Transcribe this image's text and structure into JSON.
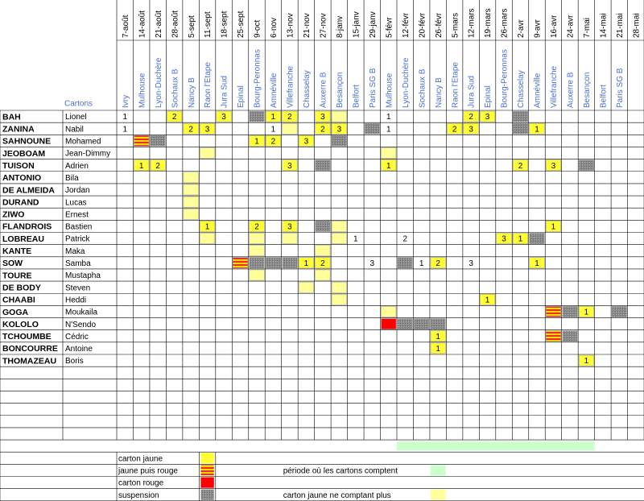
{
  "header": {
    "cartons": "Cartons"
  },
  "columns": [
    {
      "date": "7-août",
      "venue": "Ivry"
    },
    {
      "date": "14-août",
      "venue": "Mulhouse"
    },
    {
      "date": "21-août",
      "venue": "Lyon-Duchère"
    },
    {
      "date": "28-août",
      "venue": "Sochaux B"
    },
    {
      "date": "5-sept",
      "venue": "Nancy B"
    },
    {
      "date": "11-sept",
      "venue": "Raon l'Etape"
    },
    {
      "date": "18-sept",
      "venue": "Jura Sud"
    },
    {
      "date": "25-sept",
      "venue": "Epinal"
    },
    {
      "date": "9-oct",
      "venue": "Bourg-Peronnas"
    },
    {
      "date": "6-nov",
      "venue": "Amnéville"
    },
    {
      "date": "13-nov",
      "venue": "Villefranche"
    },
    {
      "date": "21-nov",
      "venue": "Chasselay"
    },
    {
      "date": "27-nov",
      "venue": "Auxerre B"
    },
    {
      "date": "8-janv",
      "venue": "Besançon"
    },
    {
      "date": "15-janv",
      "venue": "Belfort"
    },
    {
      "date": "29-janv",
      "venue": "Paris SG B"
    },
    {
      "date": "5-févr",
      "venue": "Mulhouse"
    },
    {
      "date": "12-févr",
      "venue": "Lyon-Duchère"
    },
    {
      "date": "20-févr",
      "venue": "Sochaux B"
    },
    {
      "date": "26-févr",
      "venue": "Nancy B"
    },
    {
      "date": "5-mars",
      "venue": "Raon l'Etape"
    },
    {
      "date": "12-mars",
      "venue": "Jura Sud"
    },
    {
      "date": "19-mars",
      "venue": "Epinal"
    },
    {
      "date": "26-mars",
      "venue": "Bourg-Peronnas"
    },
    {
      "date": "2-avr",
      "venue": "Chasselay"
    },
    {
      "date": "9-avr",
      "venue": "Amnéville"
    },
    {
      "date": "16-avr",
      "venue": "Villefranche"
    },
    {
      "date": "24-avr",
      "venue": "Auxerre B"
    },
    {
      "date": "7-mai",
      "venue": "Besançon"
    },
    {
      "date": "14-mai",
      "venue": "Belfort"
    },
    {
      "date": "21-mai",
      "venue": "Paris SG B"
    },
    {
      "date": "28-mai",
      "venue": null
    }
  ],
  "players": [
    {
      "nom": "BAH",
      "prenom": "Lionel",
      "cells": [
        {
          "col": 0,
          "kind": "blanc",
          "text": "1"
        },
        {
          "col": 3,
          "kind": "jaune",
          "text": "2"
        },
        {
          "col": 6,
          "kind": "jaune",
          "text": "3"
        },
        {
          "col": 8,
          "kind": "suspension"
        },
        {
          "col": 9,
          "kind": "jaune",
          "text": "1"
        },
        {
          "col": 10,
          "kind": "jaune",
          "text": "2"
        },
        {
          "col": 12,
          "kind": "jaune",
          "text": "3"
        },
        {
          "col": 13,
          "kind": "ancien"
        },
        {
          "col": 16,
          "kind": "blanc",
          "text": "1"
        },
        {
          "col": 21,
          "kind": "jaune",
          "text": "2"
        },
        {
          "col": 22,
          "kind": "jaune",
          "text": "3"
        },
        {
          "col": 24,
          "kind": "suspension"
        }
      ]
    },
    {
      "nom": "ZANINA",
      "prenom": "Nabil",
      "cells": [
        {
          "col": 0,
          "kind": "blanc",
          "text": "1"
        },
        {
          "col": 4,
          "kind": "jaune",
          "text": "2"
        },
        {
          "col": 5,
          "kind": "jaune",
          "text": "3"
        },
        {
          "col": 9,
          "kind": "blanc",
          "text": "1"
        },
        {
          "col": 10,
          "kind": "ancien"
        },
        {
          "col": 12,
          "kind": "jaune",
          "text": "2"
        },
        {
          "col": 13,
          "kind": "jaune",
          "text": "3"
        },
        {
          "col": 15,
          "kind": "suspension"
        },
        {
          "col": 16,
          "kind": "blanc",
          "text": "1"
        },
        {
          "col": 20,
          "kind": "jaune",
          "text": "2"
        },
        {
          "col": 21,
          "kind": "jaune",
          "text": "3"
        },
        {
          "col": 24,
          "kind": "suspension"
        },
        {
          "col": 25,
          "kind": "jaune",
          "text": "1"
        }
      ]
    },
    {
      "nom": "SAHNOUNE",
      "prenom": "Mohamed",
      "cells": [
        {
          "col": 1,
          "kind": "jaune-rouge"
        },
        {
          "col": 2,
          "kind": "suspension"
        },
        {
          "col": 8,
          "kind": "jaune",
          "text": "1"
        },
        {
          "col": 9,
          "kind": "jaune",
          "text": "2"
        },
        {
          "col": 11,
          "kind": "jaune",
          "text": "3"
        },
        {
          "col": 13,
          "kind": "suspension"
        }
      ]
    },
    {
      "nom": "JEOBOAM",
      "prenom": "Jean-Dimmy",
      "cells": [
        {
          "col": 5,
          "kind": "ancien"
        },
        {
          "col": 16,
          "kind": "ancien"
        }
      ]
    },
    {
      "nom": "TUISON",
      "prenom": "Adrien",
      "cells": [
        {
          "col": 1,
          "kind": "jaune",
          "text": "1"
        },
        {
          "col": 2,
          "kind": "jaune",
          "text": "2"
        },
        {
          "col": 10,
          "kind": "jaune",
          "text": "3"
        },
        {
          "col": 12,
          "kind": "suspension"
        },
        {
          "col": 16,
          "kind": "jaune",
          "text": "1"
        },
        {
          "col": 24,
          "kind": "jaune",
          "text": "2"
        },
        {
          "col": 26,
          "kind": "jaune",
          "text": "3"
        },
        {
          "col": 28,
          "kind": "suspension"
        }
      ]
    },
    {
      "nom": "ANTONIO",
      "prenom": "Bila",
      "cells": [
        {
          "col": 4,
          "kind": "ancien"
        }
      ]
    },
    {
      "nom": "DE ALMEIDA",
      "prenom": "Jordan",
      "cells": [
        {
          "col": 4,
          "kind": "ancien"
        }
      ]
    },
    {
      "nom": "DURAND",
      "prenom": "Lucas",
      "cells": [
        {
          "col": 4,
          "kind": "ancien"
        }
      ]
    },
    {
      "nom": "ZIWO",
      "prenom": "Ernest",
      "cells": [
        {
          "col": 4,
          "kind": "ancien"
        }
      ]
    },
    {
      "nom": "FLANDROIS",
      "prenom": "Bastien",
      "cells": [
        {
          "col": 5,
          "kind": "jaune",
          "text": "1"
        },
        {
          "col": 8,
          "kind": "jaune",
          "text": "2"
        },
        {
          "col": 10,
          "kind": "jaune",
          "text": "3"
        },
        {
          "col": 12,
          "kind": "suspension"
        },
        {
          "col": 13,
          "kind": "ancien"
        },
        {
          "col": 26,
          "kind": "jaune",
          "text": "1"
        }
      ]
    },
    {
      "nom": "LOBREAU",
      "prenom": "Patrick",
      "cells": [
        {
          "col": 5,
          "kind": "ancien"
        },
        {
          "col": 8,
          "kind": "ancien"
        },
        {
          "col": 10,
          "kind": "ancien"
        },
        {
          "col": 13,
          "kind": "ancien"
        },
        {
          "col": 14,
          "kind": "blanc",
          "text": "1"
        },
        {
          "col": 17,
          "kind": "blanc",
          "text": "2"
        },
        {
          "col": 23,
          "kind": "jaune",
          "text": "3"
        },
        {
          "col": 24,
          "kind": "jaune",
          "text": "1"
        },
        {
          "col": 25,
          "kind": "suspension"
        }
      ]
    },
    {
      "nom": "KANTE",
      "prenom": "Maka",
      "cells": [
        {
          "col": 8,
          "kind": "ancien"
        },
        {
          "col": 12,
          "kind": "ancien"
        }
      ]
    },
    {
      "nom": "SOW",
      "prenom": "Samba",
      "cells": [
        {
          "col": 7,
          "kind": "jaune-rouge"
        },
        {
          "col": 8,
          "kind": "suspension"
        },
        {
          "col": 9,
          "kind": "suspension"
        },
        {
          "col": 10,
          "kind": "suspension"
        },
        {
          "col": 11,
          "kind": "jaune",
          "text": "1"
        },
        {
          "col": 12,
          "kind": "jaune",
          "text": "2"
        },
        {
          "col": 15,
          "kind": "blanc",
          "text": "3"
        },
        {
          "col": 17,
          "kind": "suspension"
        },
        {
          "col": 18,
          "kind": "blanc",
          "text": "1"
        },
        {
          "col": 19,
          "kind": "jaune",
          "text": "2"
        },
        {
          "col": 21,
          "kind": "blanc",
          "text": "3"
        },
        {
          "col": 25,
          "kind": "jaune",
          "text": "1"
        }
      ]
    },
    {
      "nom": "TOURE",
      "prenom": "Mustapha",
      "cells": [
        {
          "col": 8,
          "kind": "ancien"
        },
        {
          "col": 12,
          "kind": "ancien"
        }
      ]
    },
    {
      "nom": "DE BODY",
      "prenom": "Steven",
      "cells": [
        {
          "col": 11,
          "kind": "ancien"
        },
        {
          "col": 13,
          "kind": "ancien"
        }
      ]
    },
    {
      "nom": "CHAABI",
      "prenom": "Heddi",
      "cells": [
        {
          "col": 13,
          "kind": "ancien"
        },
        {
          "col": 22,
          "kind": "jaune",
          "text": "1"
        }
      ]
    },
    {
      "nom": "GOGA",
      "prenom": "Moukaila",
      "cells": [
        {
          "col": 16,
          "kind": "ancien"
        },
        {
          "col": 26,
          "kind": "jaune-rouge"
        },
        {
          "col": 27,
          "kind": "suspension"
        },
        {
          "col": 28,
          "kind": "jaune",
          "text": "1"
        },
        {
          "col": 30,
          "kind": "suspension"
        }
      ]
    },
    {
      "nom": "KOLOLO",
      "prenom": "N'Sendo",
      "cells": [
        {
          "col": 16,
          "kind": "rouge"
        },
        {
          "col": 17,
          "kind": "suspension"
        },
        {
          "col": 18,
          "kind": "suspension"
        },
        {
          "col": 19,
          "kind": "suspension"
        }
      ]
    },
    {
      "nom": "TCHOUMBE",
      "prenom": "Cédric",
      "cells": [
        {
          "col": 19,
          "kind": "jaune",
          "text": "1"
        },
        {
          "col": 26,
          "kind": "jaune-rouge"
        },
        {
          "col": 27,
          "kind": "suspension"
        }
      ]
    },
    {
      "nom": "BONCOURRE",
      "prenom": "Antoine",
      "cells": [
        {
          "col": 19,
          "kind": "jaune",
          "text": "1"
        }
      ]
    },
    {
      "nom": "THOMAZEAU",
      "prenom": "Boris",
      "cells": [
        {
          "col": 28,
          "kind": "jaune",
          "text": "1"
        }
      ]
    }
  ],
  "legend": [
    {
      "label": "carton jaune",
      "kind": "jaune"
    },
    {
      "label": "jaune puis rouge",
      "kind": "jaune-rouge"
    },
    {
      "label": "carton rouge",
      "kind": "rouge"
    },
    {
      "label": "suspension",
      "kind": "suspension"
    },
    {
      "label": "période où les cartons comptent",
      "kind": "periode"
    },
    {
      "label": "carton jaune ne comptant plus",
      "kind": "ancien"
    }
  ]
}
